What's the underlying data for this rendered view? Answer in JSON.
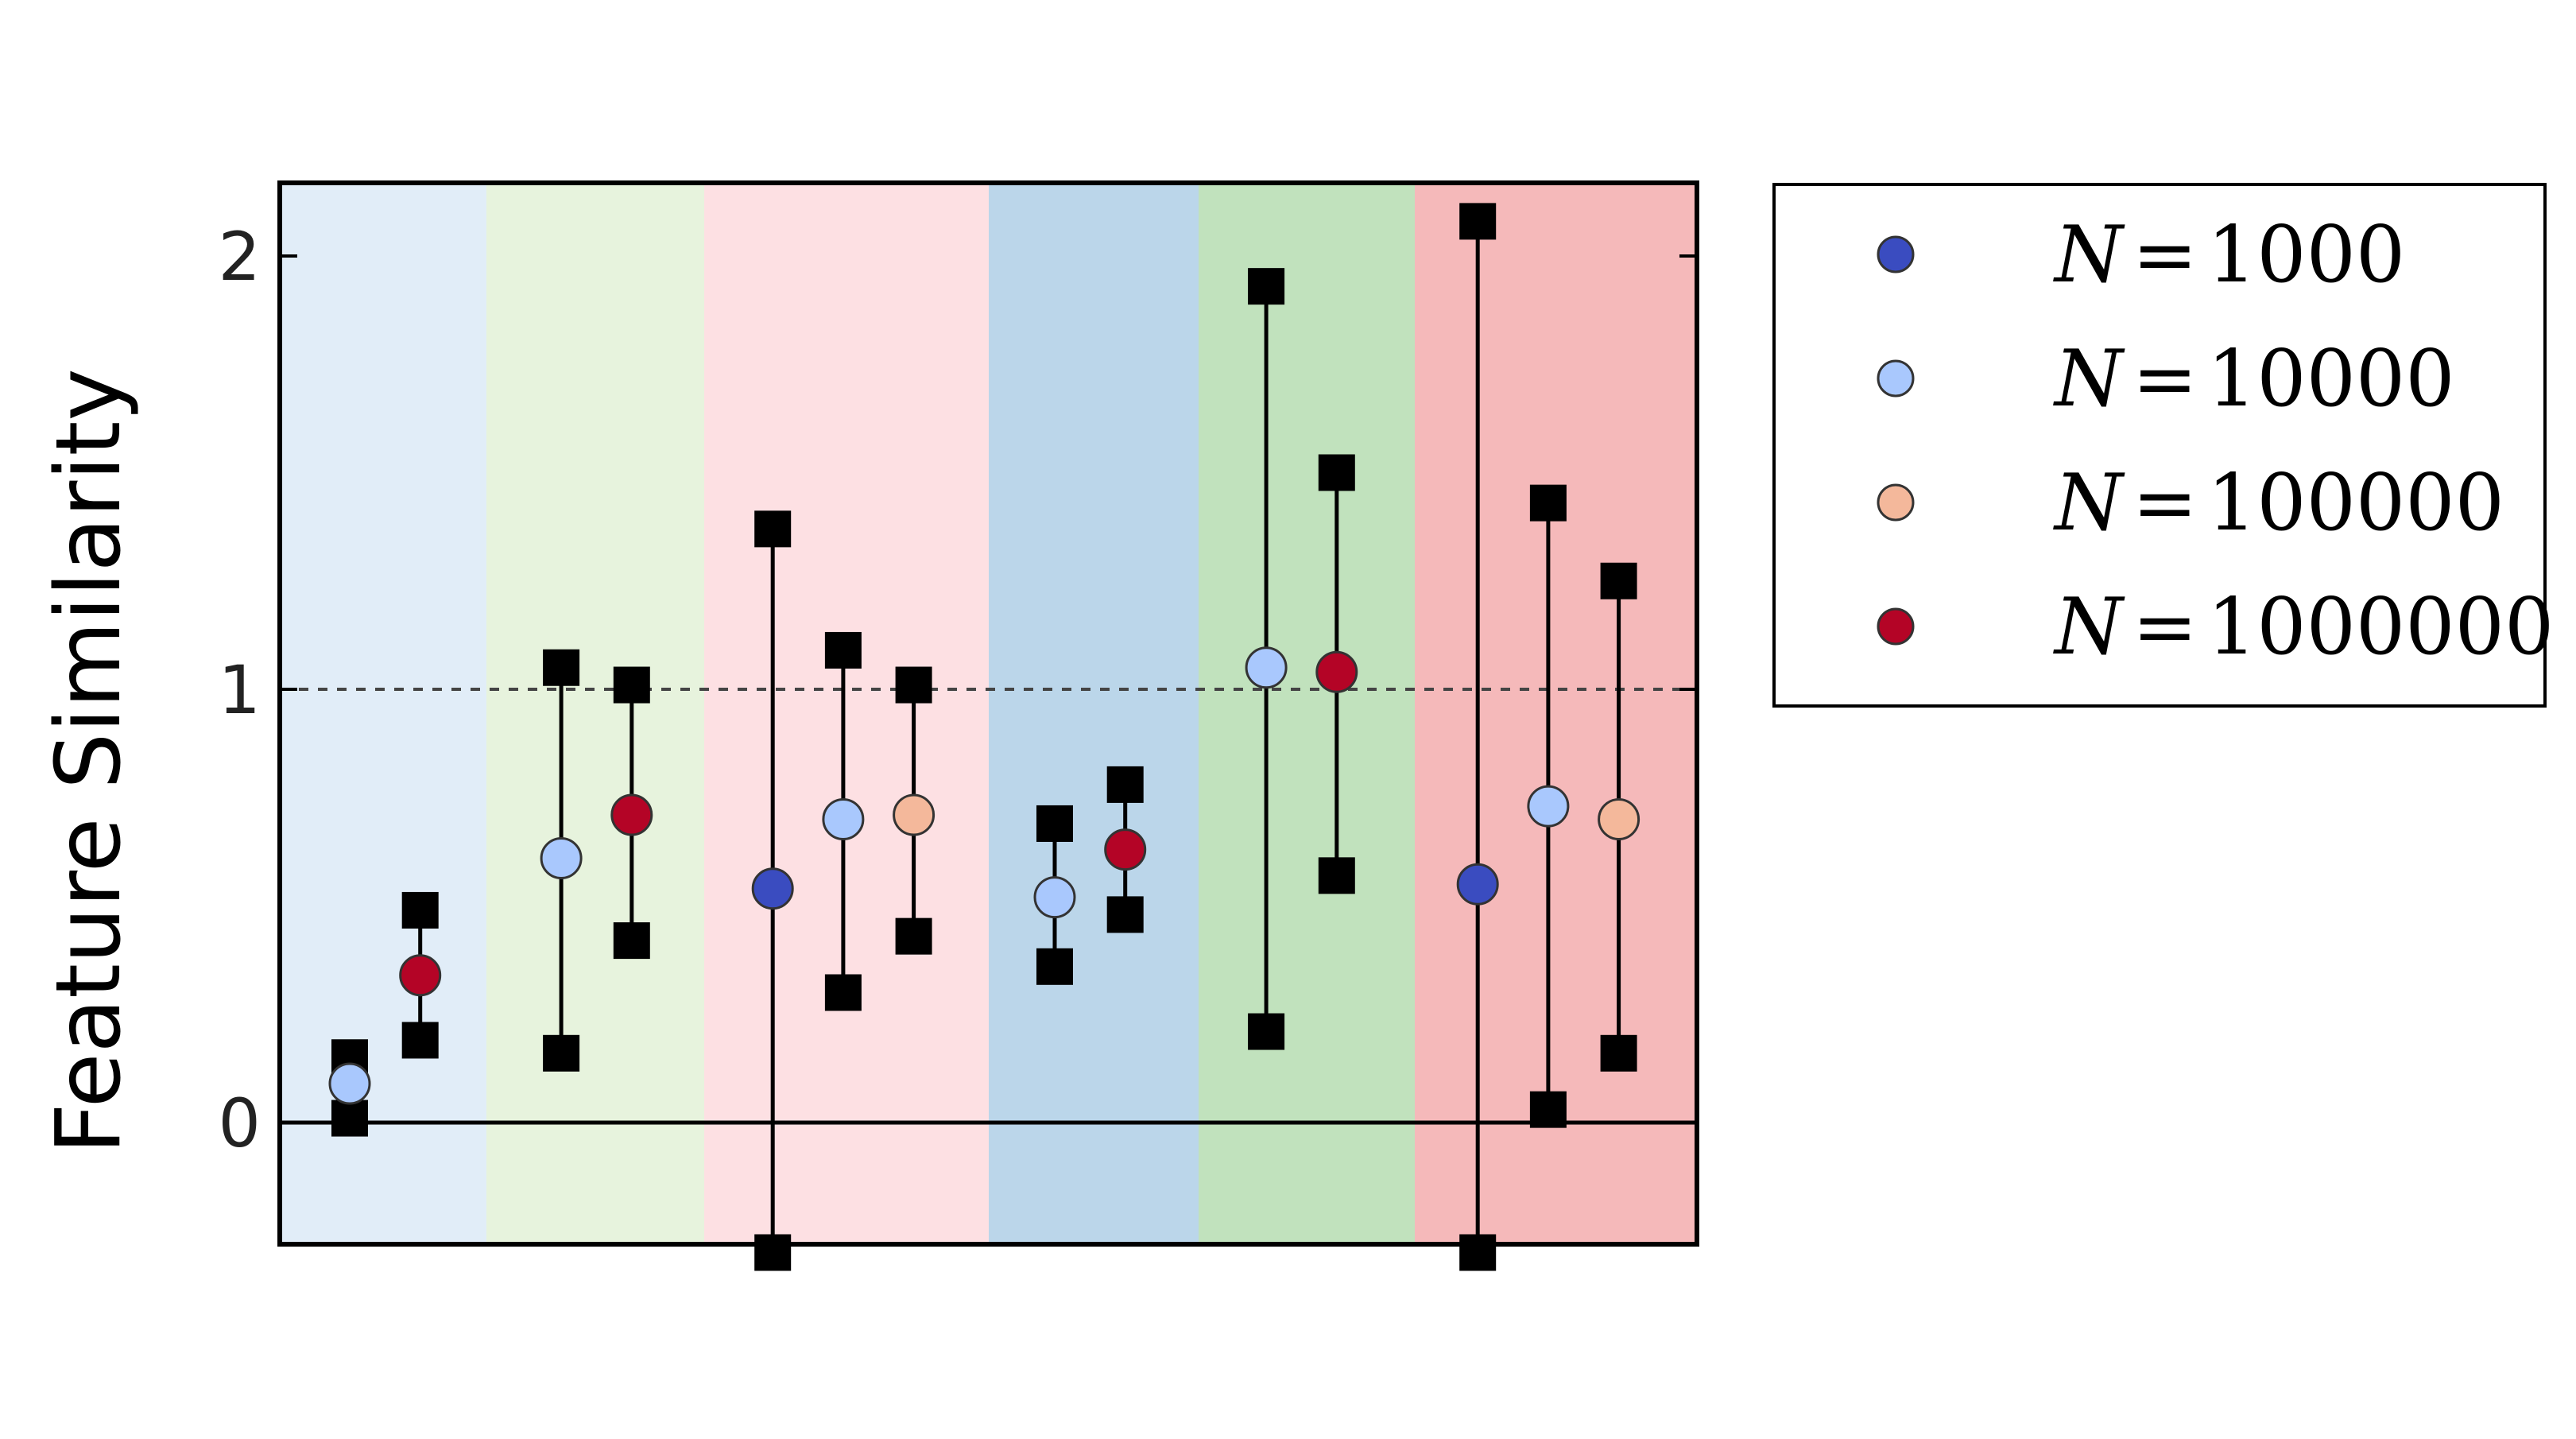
{
  "colors": {
    "band_colors": [
      "#e1edf8",
      "#e7f3dd",
      "#fde0e3",
      "#bbd6ea",
      "#c1e2bd",
      "#f5b9ba"
    ],
    "error_marker": "#000000"
  },
  "chart_data": {
    "type": "scatter",
    "title": "",
    "xlabel": "",
    "ylabel": "Feature Similarity",
    "ylim": [
      -0.3,
      2.2
    ],
    "yticks": [
      0,
      1,
      2
    ],
    "ytick_labels": [
      "0",
      "1",
      "2"
    ],
    "reference_lines": [
      {
        "y": 0,
        "style": "solid"
      },
      {
        "y": 1,
        "style": "dashed"
      }
    ],
    "bands": 6,
    "legend_placement": "outside-right",
    "series": [
      {
        "name": "N=1000",
        "legend": {
          "var": "N",
          "op": "=",
          "value": "1000"
        },
        "color": "#3a4cc0",
        "points": [
          {
            "x": 7,
            "y": 0.54,
            "lower": -0.3,
            "upper": 1.37
          },
          {
            "x": 17,
            "y": 0.55,
            "lower": -0.3,
            "upper": 2.08
          }
        ]
      },
      {
        "name": "N=10000",
        "legend": {
          "var": "N",
          "op": "=",
          "value": "10000"
        },
        "color": "#a9c8fd",
        "points": [
          {
            "x": 1,
            "y": 0.09,
            "lower": 0.01,
            "upper": 0.15
          },
          {
            "x": 4,
            "y": 0.61,
            "lower": 0.16,
            "upper": 1.05
          },
          {
            "x": 8,
            "y": 0.7,
            "lower": 0.3,
            "upper": 1.09
          },
          {
            "x": 11,
            "y": 0.52,
            "lower": 0.36,
            "upper": 0.69
          },
          {
            "x": 14,
            "y": 1.05,
            "lower": 0.21,
            "upper": 1.93
          },
          {
            "x": 18,
            "y": 0.73,
            "lower": 0.03,
            "upper": 1.43
          }
        ]
      },
      {
        "name": "N=100000",
        "legend": {
          "var": "N",
          "op": "=",
          "value": "100000"
        },
        "color": "#f4b89b",
        "points": [
          {
            "x": 9,
            "y": 0.71,
            "lower": 0.43,
            "upper": 1.01
          },
          {
            "x": 19,
            "y": 0.7,
            "lower": 0.16,
            "upper": 1.25
          }
        ]
      },
      {
        "name": "N=1000000",
        "legend": {
          "var": "N",
          "op": "=",
          "value": "1000000"
        },
        "color": "#b40426",
        "points": [
          {
            "x": 2,
            "y": 0.34,
            "lower": 0.19,
            "upper": 0.49
          },
          {
            "x": 5,
            "y": 0.71,
            "lower": 0.42,
            "upper": 1.01
          },
          {
            "x": 12,
            "y": 0.63,
            "lower": 0.48,
            "upper": 0.78
          },
          {
            "x": 15,
            "y": 1.04,
            "lower": 0.57,
            "upper": 1.5
          }
        ]
      }
    ]
  }
}
